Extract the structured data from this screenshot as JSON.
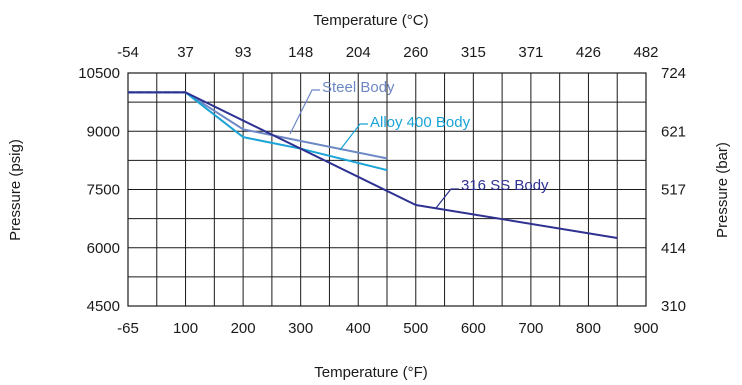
{
  "chart_data": {
    "type": "line",
    "title": "",
    "xlabel_bottom": "Temperature (°F)",
    "xlabel_top": "Temperature (°C)",
    "ylabel_left": "Pressure (psig)",
    "ylabel_right": "Pressure (bar)",
    "x_ticks_bottom": [
      "-65",
      "100",
      "200",
      "300",
      "400",
      "500",
      "600",
      "700",
      "800",
      "900"
    ],
    "x_ticks_top": [
      "-54",
      "37",
      "93",
      "148",
      "204",
      "260",
      "315",
      "371",
      "426",
      "482"
    ],
    "y_ticks_left": [
      "4500",
      "6000",
      "7500",
      "9000",
      "10500"
    ],
    "y_ticks_right": [
      "310",
      "414",
      "517",
      "621",
      "724"
    ],
    "y_range": [
      4500,
      10500
    ],
    "grid": true,
    "series": [
      {
        "name": "Steel Body",
        "color": "#6d88c4",
        "points": [
          [
            -65,
            10000
          ],
          [
            100,
            10000
          ],
          [
            200,
            9050
          ],
          [
            300,
            8750
          ],
          [
            450,
            8300
          ]
        ]
      },
      {
        "name": "Alloy 400 Body",
        "color": "#1aa3d6",
        "points": [
          [
            -65,
            10000
          ],
          [
            100,
            10000
          ],
          [
            200,
            8850
          ],
          [
            300,
            8550
          ],
          [
            450,
            8000
          ]
        ]
      },
      {
        "name": "316 SS Body",
        "color": "#2e3191",
        "points": [
          [
            -65,
            10000
          ],
          [
            100,
            10000
          ],
          [
            500,
            7100
          ],
          [
            850,
            6250
          ]
        ]
      }
    ]
  }
}
